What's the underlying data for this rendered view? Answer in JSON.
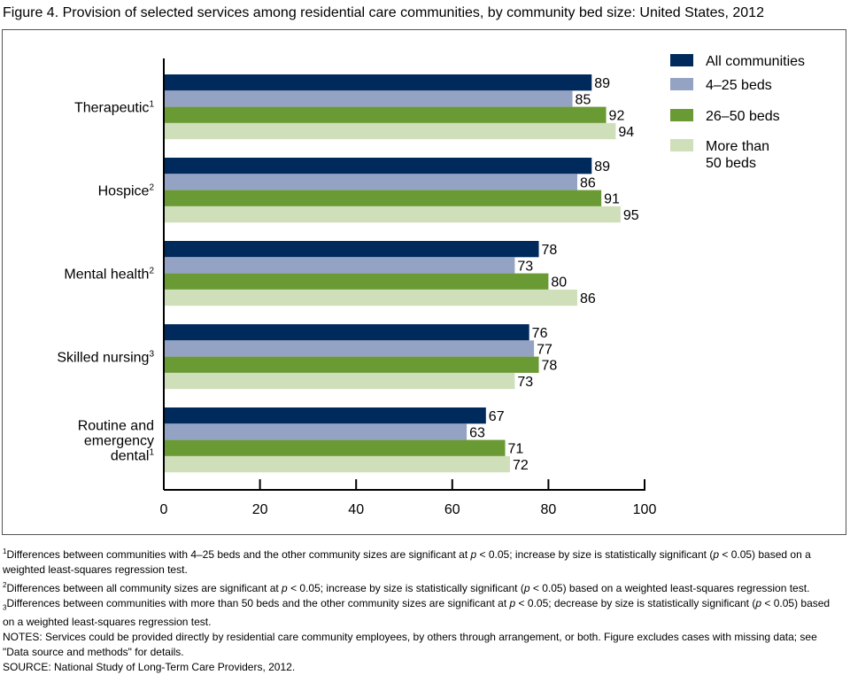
{
  "title": "Figure 4. Provision of selected services among residential care communities, by community bed size: United States, 2012",
  "chart_data": {
    "type": "bar",
    "orientation": "horizontal",
    "title": "Figure 4. Provision of selected services among residential care communities, by community bed size: United States, 2012",
    "xlabel": "",
    "ylabel": "",
    "xlim": [
      0,
      100
    ],
    "xticks": [
      0,
      20,
      40,
      60,
      80,
      100
    ],
    "grid": false,
    "legend_position": "top-right",
    "categories": [
      {
        "lines": [
          "Therapeutic"
        ],
        "sup": "1"
      },
      {
        "lines": [
          "Hospice"
        ],
        "sup": "2"
      },
      {
        "lines": [
          "Mental health"
        ],
        "sup": "2"
      },
      {
        "lines": [
          "Skilled nursing"
        ],
        "sup": "3"
      },
      {
        "lines": [
          "Routine and",
          "emergency",
          "dental"
        ],
        "sup": "1"
      }
    ],
    "series": [
      {
        "name": "All communities",
        "color": "#002A5C",
        "values": [
          89,
          89,
          78,
          76,
          67
        ]
      },
      {
        "name": "4–25 beds",
        "color": "#94A2C4",
        "values": [
          85,
          86,
          73,
          77,
          63
        ]
      },
      {
        "name": "26–50 beds",
        "color": "#6A9A33",
        "values": [
          92,
          91,
          80,
          78,
          71
        ]
      },
      {
        "name": "More than 50 beds",
        "legend_lines": [
          "More than",
          "50 beds"
        ],
        "color": "#CFDFBA",
        "values": [
          94,
          95,
          86,
          73,
          72
        ]
      }
    ]
  },
  "notes": {
    "fn1_mark": "1",
    "fn1_a": "Differences between communities with 4–25 beds and the other community sizes are significant at ",
    "fn1_b": " < 0.05; increase by size is statistically significant (",
    "fn1_c": " < 0.05) based on a weighted least-squares regression test.",
    "fn2_mark": "2",
    "fn2_a": "Differences between all community sizes are significant at ",
    "fn2_b": " < 0.05; increase by size is statistically significant (",
    "fn2_c": " < 0.05) based on a weighted least-squares regression test.",
    "fn3_mark": "3",
    "fn3_a": "Differences between communities with more than 50 beds and the other community sizes are significant at ",
    "fn3_b": " < 0.05; decrease by size is statistically significant (",
    "fn3_c": " < 0.05) based on a weighted least-squares regression test.",
    "p": "p",
    "notes_text": "NOTES: Services could be provided directly by residential care community employees, by others through arrangement, or both. Figure excludes cases with missing data; see \"Data source and methods\" for details.",
    "source_text": "SOURCE: National Study of Long-Term Care Providers, 2012."
  }
}
